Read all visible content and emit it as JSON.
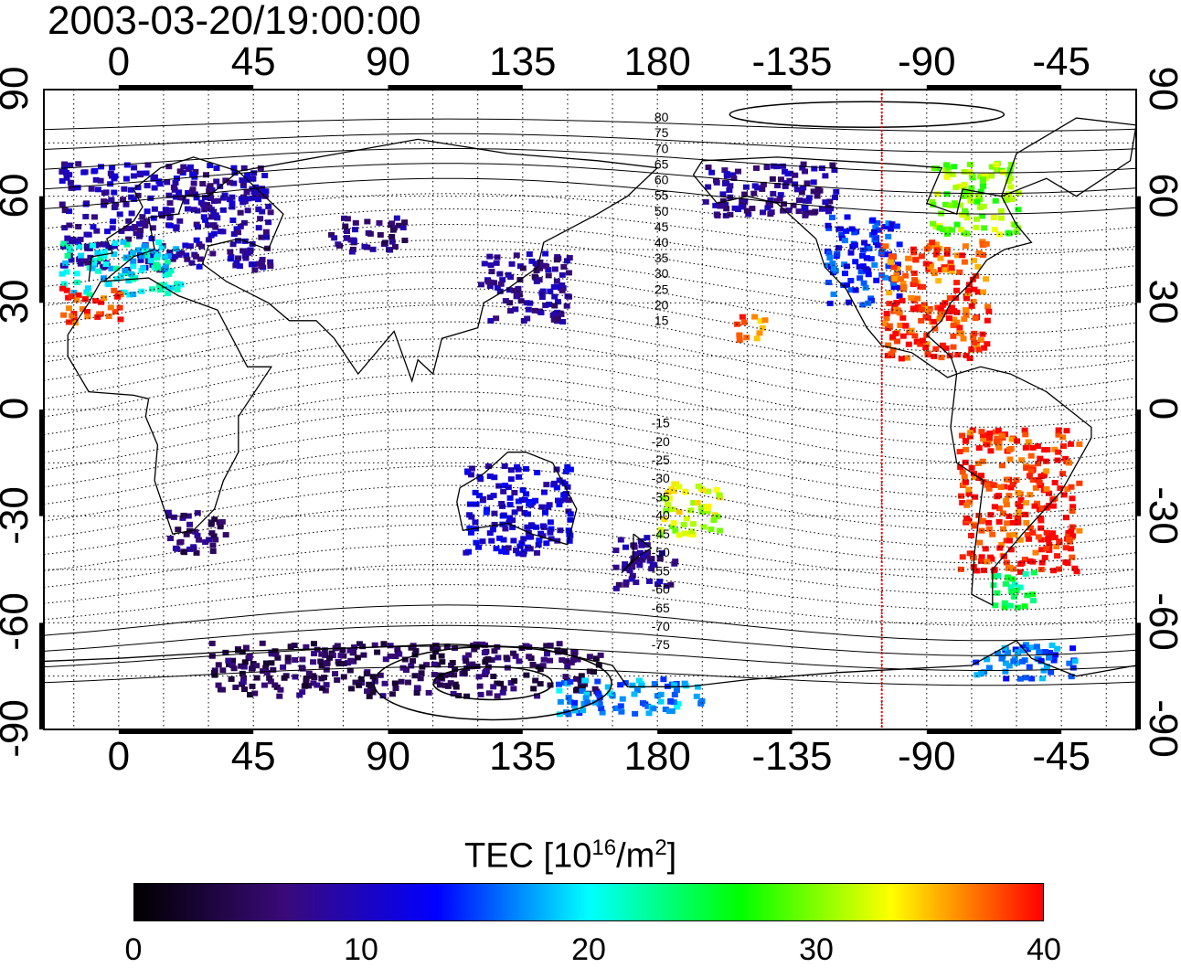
{
  "title": "2003-03-20/19:00:00",
  "x_ticks": [
    {
      "label": "0",
      "lon": 0
    },
    {
      "label": "45",
      "lon": 45
    },
    {
      "label": "90",
      "lon": 90
    },
    {
      "label": "135",
      "lon": 135
    },
    {
      "label": "180",
      "lon": 180
    },
    {
      "label": "-135",
      "lon": 225
    },
    {
      "label": "-90",
      "lon": 270
    },
    {
      "label": "-45",
      "lon": 315
    }
  ],
  "y_ticks": [
    {
      "label": "90",
      "lat": 90
    },
    {
      "label": "60",
      "lat": 60
    },
    {
      "label": "30",
      "lat": 30
    },
    {
      "label": "0",
      "lat": 0
    },
    {
      "label": "-30",
      "lat": -30
    },
    {
      "label": "-60",
      "lat": -60
    },
    {
      "label": "-90",
      "lat": -90
    }
  ],
  "contour_labels_north": [
    "80",
    "75",
    "70",
    "65",
    "60",
    "55",
    "50",
    "45",
    "40",
    "35",
    "30",
    "25",
    "20",
    "15"
  ],
  "contour_labels_south": [
    "-15",
    "-20",
    "-25",
    "-30",
    "-35",
    "-40",
    "-45",
    "-50",
    "-55",
    "-60",
    "-65",
    "-70",
    "-75"
  ],
  "colorbar": {
    "title_prefix": "TEC  [10",
    "title_exp1": "16",
    "title_mid": "/m",
    "title_exp2": "2",
    "title_suffix": "]",
    "min": 0,
    "max": 40,
    "ticks": [
      "0",
      "10",
      "20",
      "30",
      "40"
    ],
    "stops": [
      "#000000",
      "#3a0a7a",
      "#0000ff",
      "#00ffff",
      "#00ff00",
      "#ffff00",
      "#ff0000"
    ]
  },
  "terminator_lon": 255,
  "terminator_color": "#ff0000",
  "chart_data": {
    "type": "heatmap",
    "title": "2003-03-20/19:00:00",
    "xlabel": "",
    "ylabel": "",
    "xlim": [
      -25,
      340
    ],
    "ylim": [
      -90,
      90
    ],
    "value_label": "TEC [10^16/m^2]",
    "value_range": [
      0,
      40
    ],
    "grid": true,
    "regions": [
      {
        "lon": [
          -20,
          50
        ],
        "lat": [
          40,
          70
        ],
        "tec": 9
      },
      {
        "lon": [
          -20,
          20
        ],
        "lat": [
          33,
          48
        ],
        "tec": 20
      },
      {
        "lon": [
          -20,
          0
        ],
        "lat": [
          25,
          35
        ],
        "tec": 39
      },
      {
        "lon": [
          70,
          95
        ],
        "lat": [
          45,
          55
        ],
        "tec": 7
      },
      {
        "lon": [
          120,
          150
        ],
        "lat": [
          25,
          45
        ],
        "tec": 8
      },
      {
        "lon": [
          195,
          240
        ],
        "lat": [
          55,
          70
        ],
        "tec": 8
      },
      {
        "lon": [
          235,
          260
        ],
        "lat": [
          30,
          55
        ],
        "tec": 14
      },
      {
        "lon": [
          255,
          290
        ],
        "lat": [
          28,
          48
        ],
        "tec": 38
      },
      {
        "lon": [
          255,
          290
        ],
        "lat": [
          15,
          30
        ],
        "tec": 39
      },
      {
        "lon": [
          270,
          300
        ],
        "lat": [
          50,
          70
        ],
        "tec": 30
      },
      {
        "lon": [
          280,
          320
        ],
        "lat": [
          -45,
          -5
        ],
        "tec": 39
      },
      {
        "lon": [
          290,
          305
        ],
        "lat": [
          -55,
          -45
        ],
        "tec": 24
      },
      {
        "lon": [
          115,
          150
        ],
        "lat": [
          -40,
          -15
        ],
        "tec": 11
      },
      {
        "lon": [
          165,
          185
        ],
        "lat": [
          -50,
          -35
        ],
        "tec": 8
      },
      {
        "lon": [
          180,
          200
        ],
        "lat": [
          -35,
          -20
        ],
        "tec": 32
      },
      {
        "lon": [
          15,
          35
        ],
        "lat": [
          -40,
          -28
        ],
        "tec": 6
      },
      {
        "lon": [
          30,
          160
        ],
        "lat": [
          -80,
          -65
        ],
        "tec": 5
      },
      {
        "lon": [
          145,
          195
        ],
        "lat": [
          -85,
          -75
        ],
        "tec": 17
      },
      {
        "lon": [
          285,
          320
        ],
        "lat": [
          -75,
          -65
        ],
        "tec": 16
      },
      {
        "lon": [
          205,
          215
        ],
        "lat": [
          20,
          27
        ],
        "tec": 37
      }
    ]
  }
}
